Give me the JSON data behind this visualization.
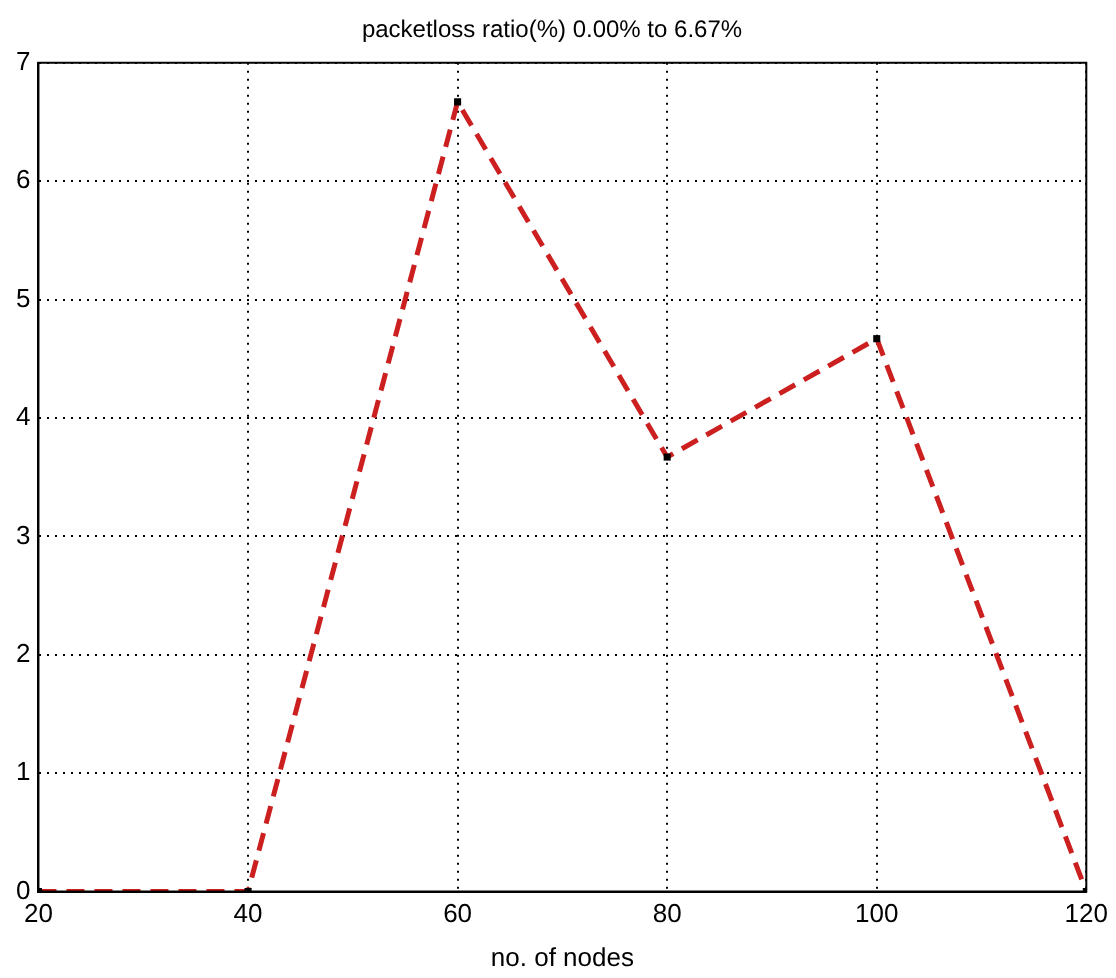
{
  "chart_data": {
    "type": "line",
    "title": "packetloss ratio(%) 0.00% to 6.67%",
    "xlabel": "no. of nodes",
    "x": [
      20,
      40,
      60,
      80,
      100,
      120
    ],
    "series": [
      {
        "color": "#cc1f1f",
        "values": [
          0,
          0,
          6.67,
          3.67,
          4.67,
          0
        ]
      }
    ],
    "xlim": [
      20,
      120
    ],
    "xticks": [
      20,
      40,
      60,
      80,
      100,
      120
    ],
    "ylim": [
      0,
      7
    ],
    "yticks": [
      0,
      1,
      2,
      3,
      4,
      5,
      6,
      7
    ],
    "grid": true,
    "legend": false,
    "marker": "square",
    "line_style": "dashed"
  }
}
